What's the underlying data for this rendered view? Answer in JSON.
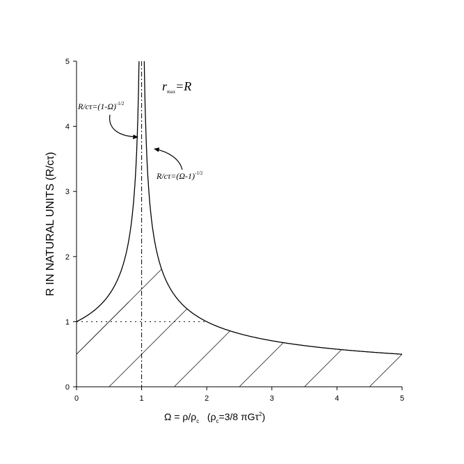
{
  "chart_data": {
    "type": "line",
    "title": "",
    "xlabel": "Ω = ρ/ρc   (ρc=3/8 πGτ²)",
    "ylabel": "R IN NATURAL UNITS (R/cτ)",
    "xlim": [
      0,
      5
    ],
    "ylim": [
      0,
      5
    ],
    "x_ticks": [
      "0",
      "1",
      "2",
      "3",
      "4",
      "5"
    ],
    "y_ticks": [
      "0",
      "1",
      "2",
      "3",
      "4",
      "5"
    ],
    "grid": false,
    "series": [
      {
        "name": "R/cτ=(1-Ω)^-1/2",
        "formula": "(1-x)^(-1/2)",
        "x": [
          0,
          0.25,
          0.5,
          0.75,
          0.9,
          0.95,
          0.96
        ],
        "y": [
          1.0,
          1.15,
          1.41,
          2.0,
          3.16,
          4.47,
          5.0
        ]
      },
      {
        "name": "R/cτ=(Ω-1)^-1/2",
        "formula": "(x-1)^(-1/2)",
        "x": [
          1.04,
          1.05,
          1.1,
          1.25,
          1.5,
          2,
          3,
          4,
          5
        ],
        "y": [
          5.0,
          4.47,
          3.16,
          2.0,
          1.41,
          1.0,
          0.71,
          0.58,
          0.5
        ]
      }
    ],
    "reference_lines": [
      {
        "type": "vertical",
        "x": 1,
        "style": "dash-dot"
      },
      {
        "type": "horizontal",
        "y": 1,
        "x_range": [
          0,
          2
        ],
        "style": "dotted"
      }
    ],
    "shaded_region": "hatched area below curve",
    "annotations": {
      "top_label": {
        "r": "r",
        "sub": "max",
        "eq": "=R"
      },
      "left_curve": {
        "text": "R/cτ=(1-Ω)",
        "sup": "-1/2"
      },
      "right_curve": {
        "text": "R/cτ=(Ω-1)",
        "sup": "-1/2"
      }
    },
    "xlabel_parts": {
      "a": "Ω = ρ/ρ",
      "b": "c",
      "c": "   (ρ",
      "d": "c",
      "e": "=3/8 πGτ",
      "f": "2",
      "g": ")"
    }
  }
}
